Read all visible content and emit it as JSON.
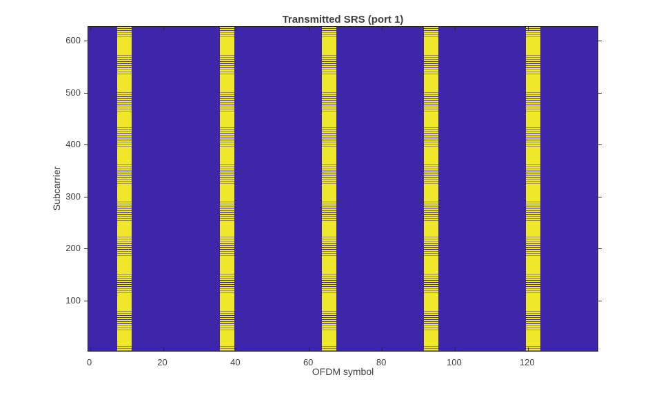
{
  "figure": {
    "title": "Transmitted SRS (port 1)",
    "xlabel": "OFDM symbol",
    "ylabel": "Subcarrier"
  },
  "colors": {
    "figure_background": "#FFFFFF",
    "colormap_low": "#3E26A8",
    "colormap_high": "#EFE72A",
    "axis": "#262626",
    "text": "#3F3F3F"
  },
  "chart_data": {
    "type": "heatmap",
    "title": "Transmitted SRS (port 1)",
    "xlabel": "OFDM symbol",
    "ylabel": "Subcarrier",
    "x_ticks": [
      0,
      20,
      40,
      60,
      80,
      100,
      120
    ],
    "y_ticks": [
      100,
      200,
      300,
      400,
      500,
      600
    ],
    "x_range": [
      -0.5,
      139.5
    ],
    "y_range": [
      0,
      627
    ],
    "n_ofdm_symbols": 140,
    "n_subcarriers": 624,
    "legend": "none",
    "grid": "off",
    "value_meaning": {
      "low": "0 = no transmission (dark blue)",
      "high": "1 = SRS resource element (yellow)"
    },
    "srs_band_symbol_starts": [
      8,
      36,
      64,
      92,
      120
    ],
    "srs_band_symbol_width": 4,
    "srs_band_symbol_ranges": [
      [
        8,
        11
      ],
      [
        36,
        39
      ],
      [
        64,
        67
      ],
      [
        92,
        95
      ],
      [
        120,
        123
      ]
    ],
    "srs_subcarrier_span": [
      1,
      624
    ],
    "srs_comb_pattern": "SRS occupies alternating subcarriers (comb) across the full band, rendered as fine yellow horizontal stripes with moiré banding"
  }
}
